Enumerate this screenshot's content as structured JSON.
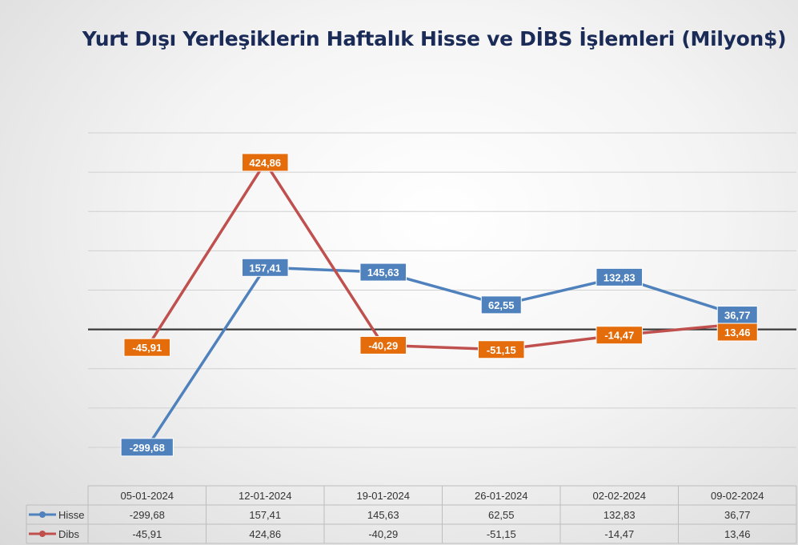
{
  "chart_data": {
    "type": "line",
    "title": "Yurt Dışı Yerleşiklerin Haftalık Hisse ve DİBS İşlemleri (Milyon$)",
    "categories": [
      "05-01-2024",
      "12-01-2024",
      "19-01-2024",
      "26-01-2024",
      "02-02-2024",
      "09-02-2024"
    ],
    "series": [
      {
        "name": "Hisse",
        "values": [
          -299.68,
          157.41,
          145.63,
          62.55,
          132.83,
          36.77
        ],
        "labels": [
          "-299,68",
          "157,41",
          "145,63",
          "62,55",
          "132,83",
          "36,77"
        ],
        "line_color": "#4f81bd",
        "label_color": "#4f81bd"
      },
      {
        "name": "Dibs",
        "values": [
          -45.91,
          424.86,
          -40.29,
          -51.15,
          -14.47,
          13.46
        ],
        "labels": [
          "-45,91",
          "424,86",
          "-40,29",
          "-51,15",
          "-14,47",
          "13,46"
        ],
        "line_color": "#c0504d",
        "label_color": "#e46c0a"
      }
    ],
    "ylim": [
      -300,
      500
    ],
    "ygrid_step": 100,
    "grid": true,
    "legend": "data-table",
    "zero_line_color": "#3a3a3a"
  }
}
